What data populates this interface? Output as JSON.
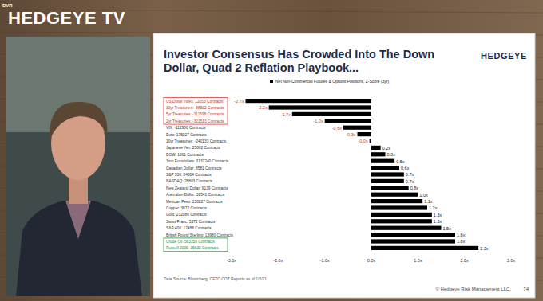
{
  "page": {
    "channel": "HEDGEYE TV",
    "badge": "DVR",
    "logo": "HEDGEYE",
    "footer": "© Hedgeye Risk Management LLC.",
    "slide_number": "74"
  },
  "chart_data": {
    "type": "bar",
    "orientation": "horizontal",
    "title": "Investor Consensus Has Crowded Into The Down Dollar, Quad 2 Reflation Playbook...",
    "source": "Data Source: Bloomberg, CFTC COT Reports as of 1/5/21",
    "categories": [
      "US Dollar Index: 12053 Contracts",
      "30yr Treasuries: -88502 Contracts",
      "5yr Treasuries: -311698 Contracts",
      "2yr Treasuries: -321513 Contracts",
      "VIX: -112906 Contracts",
      "Euro: 175027 Contracts",
      "10yr Treasuries: -240133 Contracts",
      "Japanese Yen: 25002 Contracts",
      "DOW: 1861 Contracts",
      "3mo Eurodollars: 3137240 Contracts",
      "Canadian Dollar: 8581 Contracts",
      "S&P 500: 24604 Contracts",
      "NASDAQ: 28803 Contracts",
      "New Zealand Dollar: 9139 Contracts",
      "Australian Dollar: 38541 Contracts",
      "Mexican Peso: 150227 Contracts",
      "Copper: 3872 Contracts",
      "Gold: 232086 Contracts",
      "Swiss Franc: 5372 Contracts",
      "S&P 400: 12488 Contracts",
      "British Pound Sterling: 13980 Contracts",
      "Crude Oil: 563350 Contracts",
      "Russell 2000: 35633 Contracts"
    ],
    "series": [
      {
        "name": "Net Non-Commercial Futures & Options Positions, Z-Score (3yr)",
        "color": "#000000",
        "values": [
          -2.7,
          -2.2,
          -1.7,
          -1.0,
          -0.6,
          -0.3,
          -0.04,
          0.2,
          0.3,
          0.5,
          0.6,
          0.7,
          0.7,
          0.8,
          1.0,
          1.1,
          1.2,
          1.3,
          1.3,
          1.5,
          1.8,
          1.8,
          2.3
        ],
        "value_labels": [
          "-2.7x",
          "-2.2x",
          "-1.7x",
          "-1.0x",
          "-0.6x",
          "-0.3x",
          "-0.0x",
          "0.2x",
          "0.3x",
          "0.5x",
          "0.6x",
          "0.7x",
          "0.7x",
          "0.8x",
          "1.0x",
          "1.1x",
          "1.2x",
          "1.3x",
          "1.3x",
          "1.5x",
          "1.8x",
          "1.8x",
          "2.3x"
        ]
      }
    ],
    "xlim": [
      -3,
      3
    ],
    "xticks": [
      {
        "value": -3,
        "label": "-3.0x"
      },
      {
        "value": -2,
        "label": "-2.0x"
      },
      {
        "value": -1,
        "label": "-1.0x"
      },
      {
        "value": 0,
        "label": "0.0x"
      },
      {
        "value": 1,
        "label": "1.0x"
      },
      {
        "value": 2,
        "label": "2.0x"
      },
      {
        "value": 3,
        "label": "3.0x"
      }
    ],
    "data_labels": true,
    "legend": "top"
  }
}
